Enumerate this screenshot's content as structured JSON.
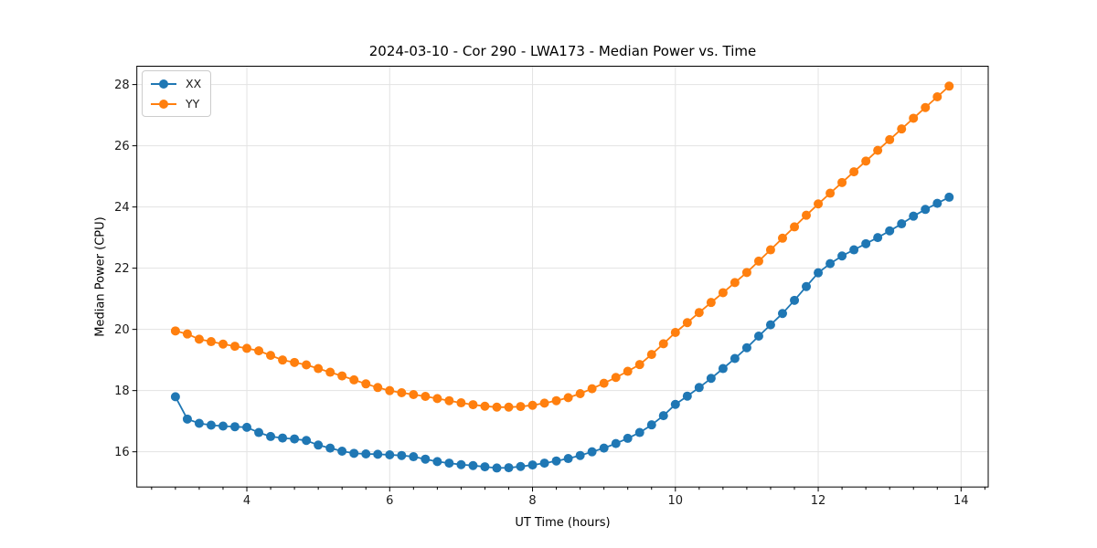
{
  "chart_data": {
    "type": "line",
    "title": "2024-03-10 - Cor 290 - LWA173 - Median Power vs. Time",
    "xlabel": "UT Time (hours)",
    "ylabel": "Median Power (CPU)",
    "legend_position": "upper left",
    "grid": true,
    "grid_color": "#e3e3e3",
    "xlim": [
      2.46,
      14.38
    ],
    "ylim": [
      14.85,
      28.6
    ],
    "x_tick_values": [
      4,
      6,
      8,
      10,
      12,
      14
    ],
    "x_tick_labels": [
      "4",
      "6",
      "8",
      "10",
      "12",
      "14"
    ],
    "x_minor_tick_step": 0.3333,
    "y_tick_values": [
      16,
      18,
      20,
      22,
      24,
      26,
      28
    ],
    "y_tick_labels": [
      "16",
      "18",
      "20",
      "22",
      "24",
      "26",
      "28"
    ],
    "x": [
      3.0,
      3.167,
      3.333,
      3.5,
      3.667,
      3.833,
      4.0,
      4.167,
      4.333,
      4.5,
      4.667,
      4.833,
      5.0,
      5.167,
      5.333,
      5.5,
      5.667,
      5.833,
      6.0,
      6.167,
      6.333,
      6.5,
      6.667,
      6.833,
      7.0,
      7.167,
      7.333,
      7.5,
      7.667,
      7.833,
      8.0,
      8.167,
      8.333,
      8.5,
      8.667,
      8.833,
      9.0,
      9.167,
      9.333,
      9.5,
      9.667,
      9.833,
      10.0,
      10.167,
      10.333,
      10.5,
      10.667,
      10.833,
      11.0,
      11.167,
      11.333,
      11.5,
      11.667,
      11.833,
      12.0,
      12.167,
      12.333,
      12.5,
      12.667,
      12.833,
      13.0,
      13.167,
      13.333,
      13.5,
      13.667,
      13.833
    ],
    "series": [
      {
        "name": "XX",
        "color": "#1f77b4",
        "values": [
          17.8,
          17.07,
          16.93,
          16.87,
          16.84,
          16.82,
          16.8,
          16.63,
          16.5,
          16.45,
          16.42,
          16.37,
          16.22,
          16.12,
          16.02,
          15.95,
          15.93,
          15.92,
          15.9,
          15.88,
          15.84,
          15.76,
          15.68,
          15.63,
          15.58,
          15.55,
          15.51,
          15.47,
          15.48,
          15.52,
          15.57,
          15.63,
          15.7,
          15.78,
          15.88,
          16.0,
          16.12,
          16.27,
          16.44,
          16.63,
          16.88,
          17.18,
          17.55,
          17.82,
          18.1,
          18.4,
          18.72,
          19.05,
          19.4,
          19.78,
          20.15,
          20.52,
          20.95,
          21.4,
          21.85,
          22.15,
          22.4,
          22.6,
          22.8,
          23.0,
          23.22,
          23.45,
          23.7,
          23.92,
          24.12,
          24.32
        ]
      },
      {
        "name": "YY",
        "color": "#ff7f0e",
        "values": [
          19.95,
          19.85,
          19.68,
          19.6,
          19.52,
          19.45,
          19.38,
          19.3,
          19.15,
          19.0,
          18.92,
          18.84,
          18.72,
          18.6,
          18.48,
          18.35,
          18.22,
          18.1,
          18.0,
          17.93,
          17.87,
          17.81,
          17.74,
          17.67,
          17.6,
          17.54,
          17.49,
          17.46,
          17.46,
          17.48,
          17.52,
          17.59,
          17.67,
          17.77,
          17.9,
          18.06,
          18.24,
          18.43,
          18.63,
          18.85,
          19.18,
          19.53,
          19.9,
          20.22,
          20.55,
          20.88,
          21.2,
          21.53,
          21.86,
          22.23,
          22.6,
          22.98,
          23.35,
          23.73,
          24.1,
          24.45,
          24.8,
          25.15,
          25.5,
          25.85,
          26.2,
          26.55,
          26.9,
          27.25,
          27.6,
          27.95
        ]
      }
    ]
  },
  "style": {
    "spine_color": "#000000",
    "tick_color": "#000000",
    "tick_label_color": "#1a1a1a",
    "marker_radius": 5,
    "line_width": 1.8
  }
}
